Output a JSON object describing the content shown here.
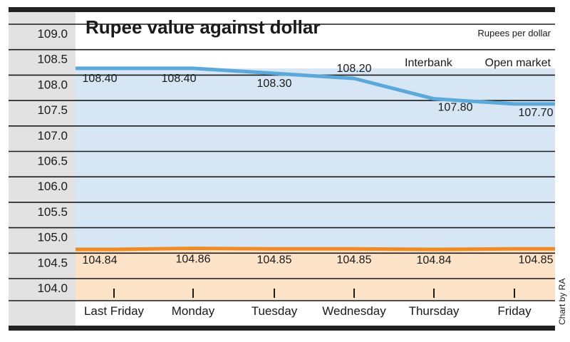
{
  "chart_data": {
    "type": "line",
    "title": "Rupee value against dollar",
    "unit_label": "Rupees per dollar",
    "legend": [
      "Interbank",
      "Open market"
    ],
    "credit": "Chart by RA",
    "categories": [
      "Last Friday",
      "Monday",
      "Tuesday",
      "Wednesday",
      "Thursday",
      "Friday"
    ],
    "ylim": [
      104.0,
      109.0
    ],
    "yticks": [
      "109.0",
      "108.5",
      "108.0",
      "107.5",
      "107.0",
      "106.5",
      "106.0",
      "105.5",
      "105.0",
      "104.5",
      "104.0"
    ],
    "series": [
      {
        "name": "Open market",
        "values": [
          108.4,
          108.4,
          108.3,
          108.2,
          107.8,
          107.7
        ],
        "labels": [
          "108.40",
          "108.40",
          "108.30",
          "108.20",
          "107.80",
          "107.70"
        ],
        "color": "#5ba8db",
        "fill": "#d6e6f4"
      },
      {
        "name": "Interbank",
        "values": [
          104.84,
          104.86,
          104.85,
          104.85,
          104.84,
          104.85
        ],
        "labels": [
          "104.84",
          "104.86",
          "104.85",
          "104.85",
          "104.84",
          "104.85"
        ],
        "color": "#f08a24",
        "fill": "#fce3c8"
      }
    ]
  }
}
